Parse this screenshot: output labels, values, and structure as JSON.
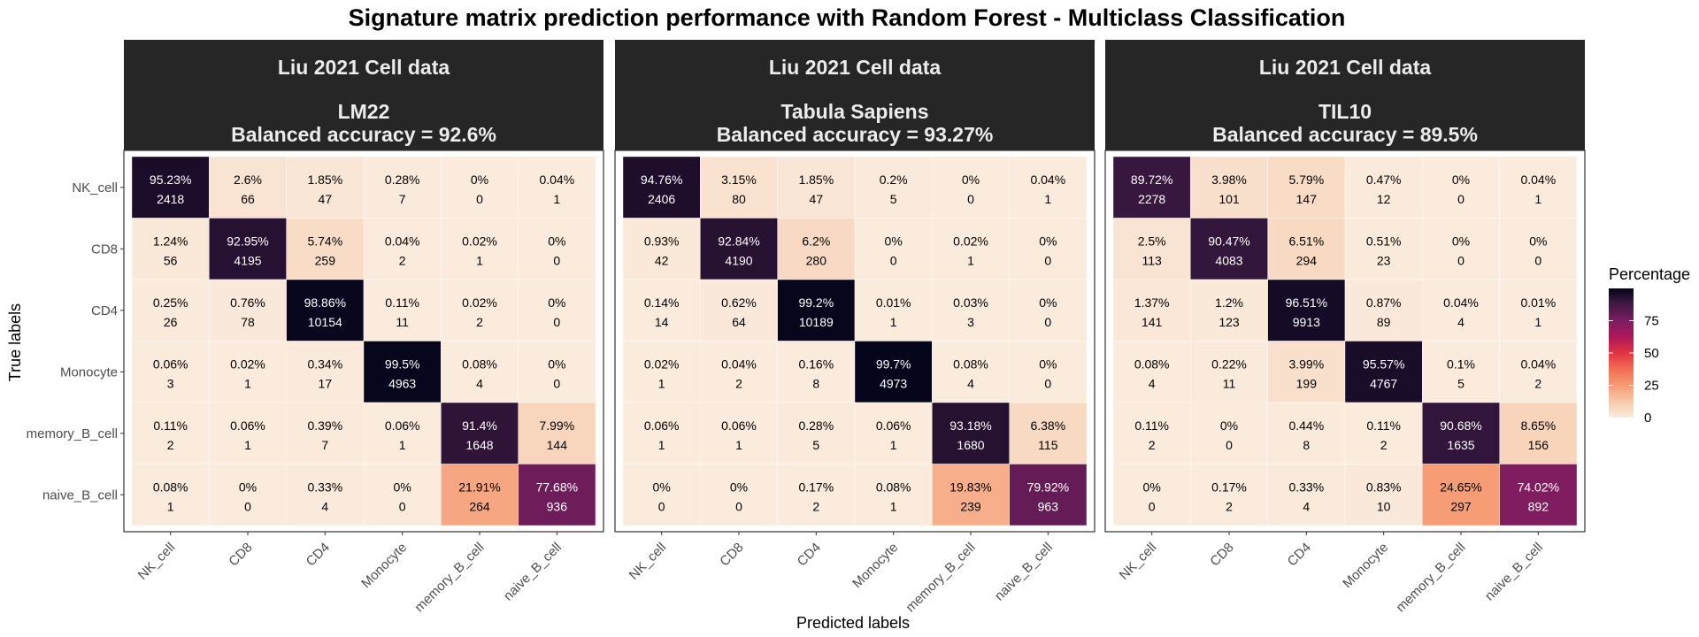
{
  "chart_data": {
    "type": "heatmap",
    "title": "Signature matrix prediction performance with Random Forest - Multiclass Classification",
    "xlabel": "Predicted labels",
    "ylabel": "True labels",
    "labels": [
      "NK_cell",
      "CD8",
      "CD4",
      "Monocyte",
      "memory_B_cell",
      "naive_B_cell"
    ],
    "legend": {
      "title": "Percentage",
      "ticks": [
        0,
        25,
        50,
        75
      ],
      "range": [
        0,
        100
      ]
    },
    "panels": [
      {
        "strip_line1": "Liu 2021 Cell data",
        "strip_line2": "LM22",
        "strip_line3": "Balanced accuracy = 92.6%",
        "percent_labels": [
          [
            "95.23%",
            "2.6%",
            "1.85%",
            "0.28%",
            "0%",
            "0.04%"
          ],
          [
            "1.24%",
            "92.95%",
            "5.74%",
            "0.04%",
            "0.02%",
            "0%"
          ],
          [
            "0.25%",
            "0.76%",
            "98.86%",
            "0.11%",
            "0.02%",
            "0%"
          ],
          [
            "0.06%",
            "0.02%",
            "0.34%",
            "99.5%",
            "0.08%",
            "0%"
          ],
          [
            "0.11%",
            "0.06%",
            "0.39%",
            "0.06%",
            "91.4%",
            "7.99%"
          ],
          [
            "0.08%",
            "0%",
            "0.33%",
            "0%",
            "21.91%",
            "77.68%"
          ]
        ],
        "percent_values": [
          [
            95.23,
            2.6,
            1.85,
            0.28,
            0,
            0.04
          ],
          [
            1.24,
            92.95,
            5.74,
            0.04,
            0.02,
            0
          ],
          [
            0.25,
            0.76,
            98.86,
            0.11,
            0.02,
            0
          ],
          [
            0.06,
            0.02,
            0.34,
            99.5,
            0.08,
            0
          ],
          [
            0.11,
            0.06,
            0.39,
            0.06,
            91.4,
            7.99
          ],
          [
            0.08,
            0,
            0.33,
            0,
            21.91,
            77.68
          ]
        ],
        "counts": [
          [
            2418,
            66,
            47,
            7,
            0,
            1
          ],
          [
            56,
            4195,
            259,
            2,
            1,
            0
          ],
          [
            26,
            78,
            10154,
            11,
            2,
            0
          ],
          [
            3,
            1,
            17,
            4963,
            4,
            0
          ],
          [
            2,
            1,
            7,
            1,
            1648,
            144
          ],
          [
            1,
            0,
            4,
            0,
            264,
            936
          ]
        ]
      },
      {
        "strip_line1": "Liu 2021 Cell data",
        "strip_line2": "Tabula Sapiens",
        "strip_line3": "Balanced accuracy = 93.27%",
        "percent_labels": [
          [
            "94.76%",
            "3.15%",
            "1.85%",
            "0.2%",
            "0%",
            "0.04%"
          ],
          [
            "0.93%",
            "92.84%",
            "6.2%",
            "0%",
            "0.02%",
            "0%"
          ],
          [
            "0.14%",
            "0.62%",
            "99.2%",
            "0.01%",
            "0.03%",
            "0%"
          ],
          [
            "0.02%",
            "0.04%",
            "0.16%",
            "99.7%",
            "0.08%",
            "0%"
          ],
          [
            "0.06%",
            "0.06%",
            "0.28%",
            "0.06%",
            "93.18%",
            "6.38%"
          ],
          [
            "0%",
            "0%",
            "0.17%",
            "0.08%",
            "19.83%",
            "79.92%"
          ]
        ],
        "percent_values": [
          [
            94.76,
            3.15,
            1.85,
            0.2,
            0,
            0.04
          ],
          [
            0.93,
            92.84,
            6.2,
            0,
            0.02,
            0
          ],
          [
            0.14,
            0.62,
            99.2,
            0.01,
            0.03,
            0
          ],
          [
            0.02,
            0.04,
            0.16,
            99.7,
            0.08,
            0
          ],
          [
            0.06,
            0.06,
            0.28,
            0.06,
            93.18,
            6.38
          ],
          [
            0,
            0,
            0.17,
            0.08,
            19.83,
            79.92
          ]
        ],
        "counts": [
          [
            2406,
            80,
            47,
            5,
            0,
            1
          ],
          [
            42,
            4190,
            280,
            0,
            1,
            0
          ],
          [
            14,
            64,
            10189,
            1,
            3,
            0
          ],
          [
            1,
            2,
            8,
            4973,
            4,
            0
          ],
          [
            1,
            1,
            5,
            1,
            1680,
            115
          ],
          [
            0,
            0,
            2,
            1,
            239,
            963
          ]
        ]
      },
      {
        "strip_line1": "Liu 2021 Cell data",
        "strip_line2": "TIL10",
        "strip_line3": "Balanced accuracy = 89.5%",
        "percent_labels": [
          [
            "89.72%",
            "3.98%",
            "5.79%",
            "0.47%",
            "0%",
            "0.04%"
          ],
          [
            "2.5%",
            "90.47%",
            "6.51%",
            "0.51%",
            "0%",
            "0%"
          ],
          [
            "1.37%",
            "1.2%",
            "96.51%",
            "0.87%",
            "0.04%",
            "0.01%"
          ],
          [
            "0.08%",
            "0.22%",
            "3.99%",
            "95.57%",
            "0.1%",
            "0.04%"
          ],
          [
            "0.11%",
            "0%",
            "0.44%",
            "0.11%",
            "90.68%",
            "8.65%"
          ],
          [
            "0%",
            "0.17%",
            "0.33%",
            "0.83%",
            "24.65%",
            "74.02%"
          ]
        ],
        "percent_values": [
          [
            89.72,
            3.98,
            5.79,
            0.47,
            0,
            0.04
          ],
          [
            2.5,
            90.47,
            6.51,
            0.51,
            0,
            0
          ],
          [
            1.37,
            1.2,
            96.51,
            0.87,
            0.04,
            0.01
          ],
          [
            0.08,
            0.22,
            3.99,
            95.57,
            0.1,
            0.04
          ],
          [
            0.11,
            0,
            0.44,
            0.11,
            90.68,
            8.65
          ],
          [
            0,
            0.17,
            0.33,
            0.83,
            24.65,
            74.02
          ]
        ],
        "counts": [
          [
            2278,
            101,
            147,
            12,
            0,
            1
          ],
          [
            113,
            4083,
            294,
            23,
            0,
            0
          ],
          [
            141,
            123,
            9913,
            89,
            4,
            1
          ],
          [
            4,
            11,
            199,
            4767,
            5,
            2
          ],
          [
            2,
            0,
            8,
            2,
            1635,
            156
          ],
          [
            0,
            2,
            4,
            10,
            297,
            892
          ]
        ]
      }
    ]
  }
}
